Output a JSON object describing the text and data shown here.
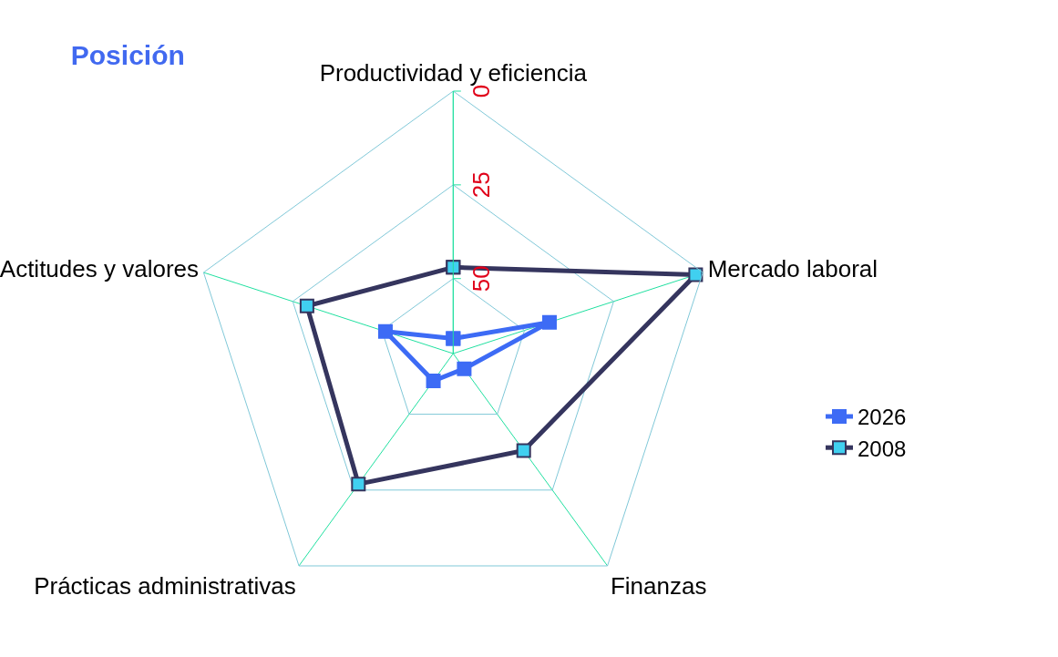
{
  "chart_data": {
    "type": "radar",
    "title": "Posición",
    "categories": [
      "Productividad y eficiencia",
      "Mercado laboral",
      "Finanzas",
      "Prácticas administrativas",
      "Actitudes y valores"
    ],
    "series": [
      {
        "name": "2026",
        "color": "#3d6bf5",
        "marker": "square",
        "values": [
          66,
          43,
          65,
          61,
          51
        ]
      },
      {
        "name": "2008",
        "color": "#35355e",
        "marker": "square",
        "values": [
          47,
          2,
          38,
          27,
          29
        ]
      }
    ],
    "ylim": [
      70,
      0
    ],
    "yticks": [
      0,
      25,
      50
    ],
    "grid": true,
    "legend": "right"
  }
}
